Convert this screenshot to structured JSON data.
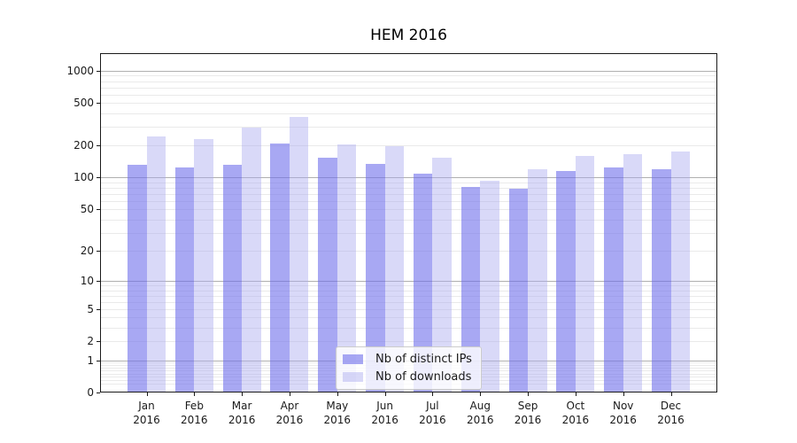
{
  "chart_data": {
    "type": "bar",
    "title": "HEM 2016",
    "year_label": "2016",
    "categories": [
      "Jan",
      "Feb",
      "Mar",
      "Apr",
      "May",
      "Jun",
      "Jul",
      "Aug",
      "Sep",
      "Oct",
      "Nov",
      "Dec"
    ],
    "series": [
      {
        "name": "Nb of distinct IPs",
        "color": "#6e6eeb",
        "alpha": 0.6,
        "values": [
          132,
          125,
          133,
          210,
          153,
          135,
          108,
          82,
          79,
          115,
          125,
          121
        ]
      },
      {
        "name": "Nb of downloads",
        "color": "#aaaaf0",
        "alpha": 0.45,
        "values": [
          242,
          231,
          295,
          368,
          207,
          198,
          153,
          93,
          121,
          161,
          167,
          176
        ]
      }
    ],
    "yscale": "log1p",
    "yticks": [
      0,
      1,
      2,
      5,
      10,
      20,
      50,
      100,
      200,
      500,
      1000
    ],
    "ylim": [
      0,
      1462
    ],
    "grid": {
      "orientation": "horizontal",
      "major_ticks": [
        1,
        10,
        100,
        1000
      ],
      "major_color": "#b0b0b0",
      "minor_color": "#eaeaea"
    },
    "legend_position": "inside-bottom-center"
  }
}
